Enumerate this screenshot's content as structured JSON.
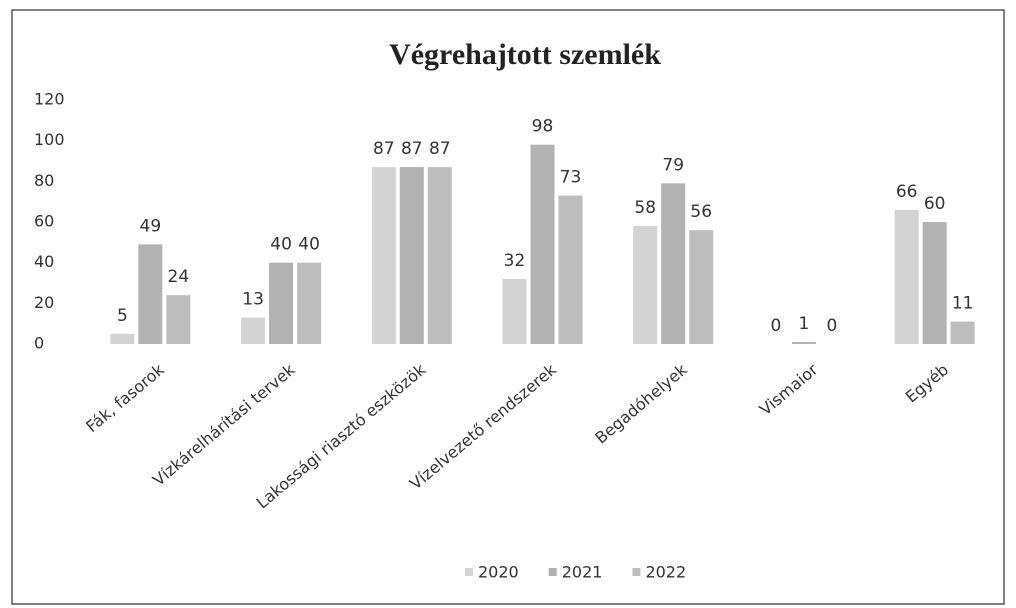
{
  "chart_data": {
    "type": "bar",
    "title": "Végrehajtott szemlék",
    "categories": [
      "Fák, fasorok",
      "Vízkárelhárítási tervek",
      "Lakossági riasztó eszközök",
      "Vízelvezető rendszerek",
      "Begadóhelyek",
      "Vismaior",
      "Egyéb"
    ],
    "series": [
      {
        "name": "2020",
        "color": "#d3d3d3",
        "values": [
          5,
          13,
          87,
          32,
          58,
          0,
          66
        ]
      },
      {
        "name": "2021",
        "color": "#b2b2b2",
        "values": [
          49,
          40,
          87,
          98,
          79,
          1,
          60
        ]
      },
      {
        "name": "2022",
        "color": "#bdbdbd",
        "values": [
          24,
          40,
          87,
          73,
          56,
          0,
          11
        ]
      }
    ],
    "ylim": [
      0,
      120
    ],
    "yticks": [
      0,
      20,
      40,
      60,
      80,
      100,
      120
    ],
    "grid": false,
    "legend": "bottom"
  }
}
